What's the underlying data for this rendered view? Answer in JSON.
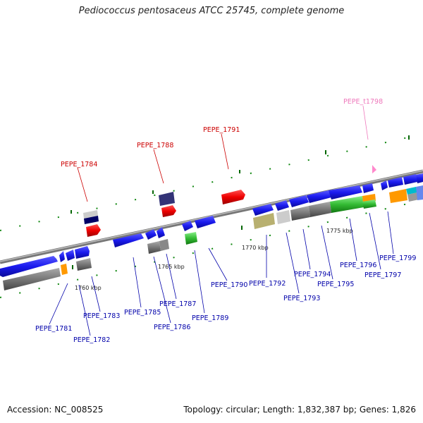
{
  "title": "Pediococcus pentosaceus ATCC 25745, complete genome",
  "footer": {
    "accession": "Accession: NC_008525",
    "summary": "Topology: circular; Length: 1,832,387 bp; Genes: 1,826"
  },
  "colors": {
    "cds": "#1a1aee",
    "rna": "#dd0000",
    "trna": "#ff88cc",
    "label_blue": "#0000aa",
    "label_red": "#cc0000",
    "label_pink": "#ee77bb",
    "axis": "#888888",
    "tick_green": "#008800"
  },
  "axis": {
    "kbp_labels": [
      "1760 kbp",
      "1765 kbp",
      "1770 kbp",
      "1775 kbp"
    ]
  },
  "genes": [
    {
      "id": "PEPE_1781",
      "label": "PEPE_1781",
      "type": "cds"
    },
    {
      "id": "PEPE_1782",
      "label": "PEPE_1782",
      "type": "cds"
    },
    {
      "id": "PEPE_1783",
      "label": "PEPE_1783",
      "type": "cds"
    },
    {
      "id": "PEPE_1784",
      "label": "PEPE_1784",
      "type": "rna"
    },
    {
      "id": "PEPE_1785",
      "label": "PEPE_1785",
      "type": "cds"
    },
    {
      "id": "PEPE_1786",
      "label": "PEPE_1786",
      "type": "cds"
    },
    {
      "id": "PEPE_1787",
      "label": "PEPE_1787",
      "type": "cds"
    },
    {
      "id": "PEPE_1788",
      "label": "PEPE_1788",
      "type": "rna"
    },
    {
      "id": "PEPE_1789",
      "label": "PEPE_1789",
      "type": "cds"
    },
    {
      "id": "PEPE_1790",
      "label": "PEPE_1790",
      "type": "cds"
    },
    {
      "id": "PEPE_1791",
      "label": "PEPE_1791",
      "type": "rna"
    },
    {
      "id": "PEPE_1792",
      "label": "PEPE_1792",
      "type": "cds"
    },
    {
      "id": "PEPE_1793",
      "label": "PEPE_1793",
      "type": "cds"
    },
    {
      "id": "PEPE_1794",
      "label": "PEPE_1794",
      "type": "cds"
    },
    {
      "id": "PEPE_1795",
      "label": "PEPE_1795",
      "type": "cds"
    },
    {
      "id": "PEPE_1796",
      "label": "PEPE_1796",
      "type": "cds"
    },
    {
      "id": "PEPE_1797",
      "label": "PEPE_1797",
      "type": "cds"
    },
    {
      "id": "PEPE_t1798",
      "label": "PEPE_t1798",
      "type": "trna"
    },
    {
      "id": "PEPE_1799",
      "label": "PEPE_1799",
      "type": "cds"
    }
  ]
}
